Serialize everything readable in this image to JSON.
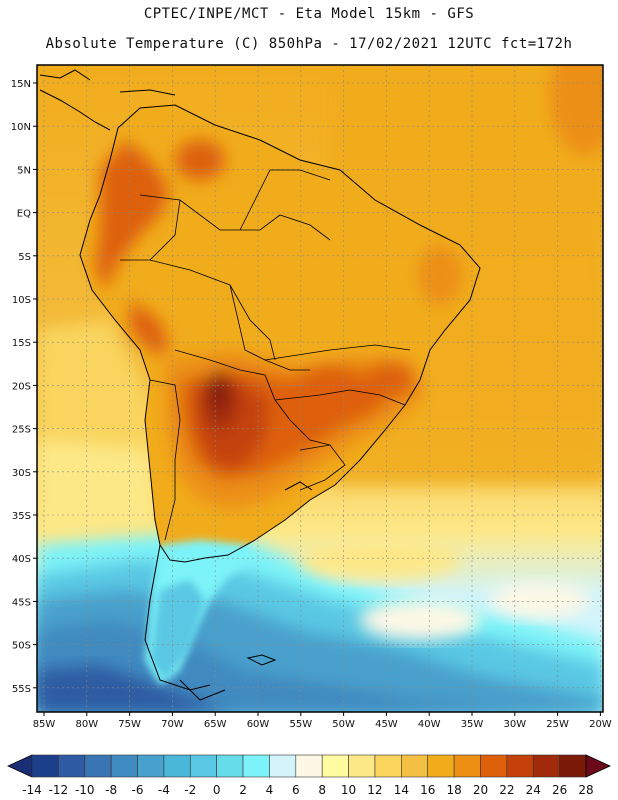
{
  "header": {
    "line1": "CPTEC/INPE/MCT -  Eta Model 15km - GFS",
    "line2": "Absolute Temperature (C) 850hPa - 17/02/2021 12UTC fct=172h"
  },
  "map": {
    "region": "South America",
    "lon_labels": [
      "85W",
      "80W",
      "75W",
      "70W",
      "65W",
      "60W",
      "55W",
      "50W",
      "45W",
      "40W",
      "35W",
      "30W",
      "25W",
      "20W"
    ],
    "lat_labels": [
      "15N",
      "10N",
      "5N",
      "EQ",
      "5S",
      "10S",
      "15S",
      "20S",
      "25S",
      "30S",
      "35S",
      "40S",
      "45S",
      "50S",
      "55S"
    ]
  },
  "colorbar": {
    "labels": [
      "-14",
      "-12",
      "-10",
      "-8",
      "-6",
      "-4",
      "-2",
      "0",
      "2",
      "4",
      "6",
      "8",
      "10",
      "12",
      "14",
      "16",
      "18",
      "20",
      "22",
      "24",
      "26",
      "28"
    ],
    "colors": [
      "#1c3f8c",
      "#2e5ba3",
      "#3a75b3",
      "#3f8ac0",
      "#48a0cc",
      "#4ab6d8",
      "#5ac8e4",
      "#66dcea",
      "#7cf3f8",
      "#d2f4fa",
      "#fdf8e6",
      "#fffba0",
      "#fde888",
      "#f9d55e",
      "#f4c044",
      "#f1ac1c",
      "#ec8f12",
      "#de600a",
      "#c4420a",
      "#a02a0a",
      "#7c1a0a"
    ],
    "left_color": "#1a2e78",
    "right_color": "#6a0a1a"
  },
  "colors": {
    "ocean_warm": "#f1ac1c",
    "frame": "#000000"
  }
}
